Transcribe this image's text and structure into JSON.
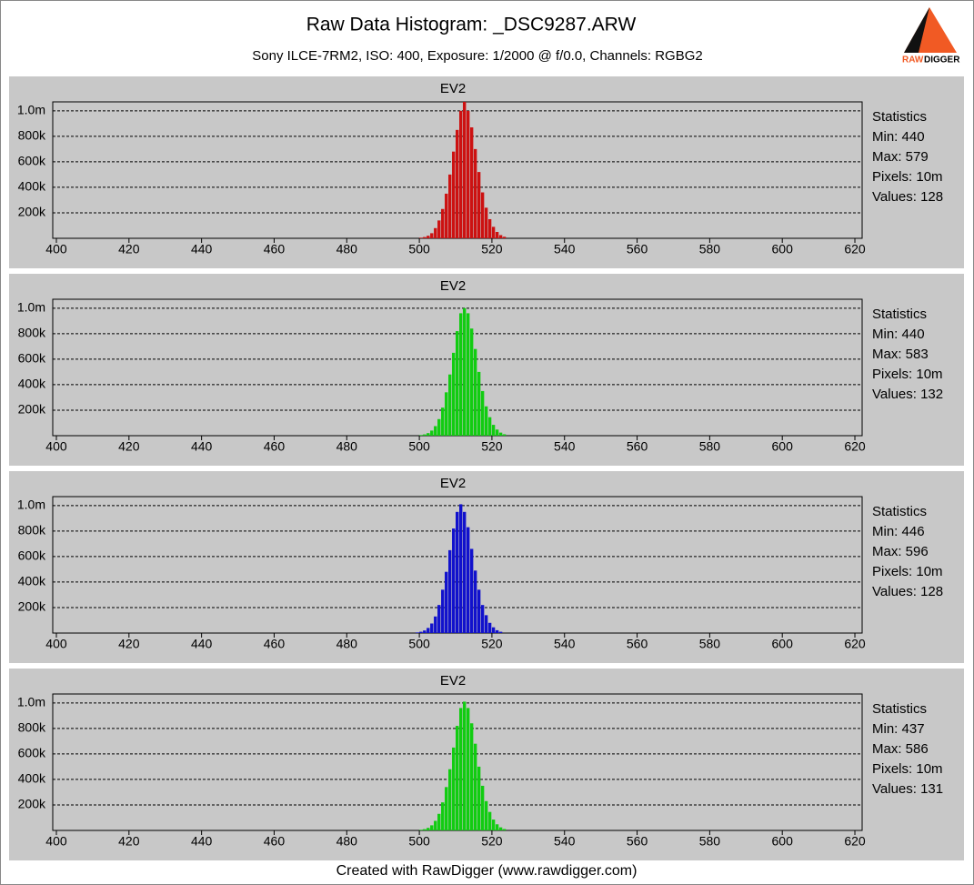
{
  "title": "Raw Data Histogram: _DSC9287.ARW",
  "subtitle": "Sony ILCE-7RM2, ISO: 400, Exposure: 1/2000 @ f/0.0, Channels: RGBG2",
  "footer": "Created with RawDigger (www.rawdigger.com)",
  "logo": {
    "raw": "RAW",
    "digger": "DIGGER"
  },
  "chart_data": [
    {
      "type": "histogram",
      "title": "EV2",
      "color": "#cc1111",
      "bins": [
        500,
        501,
        502,
        503,
        504,
        505,
        506,
        507,
        508,
        509,
        510,
        511,
        512,
        513,
        514,
        515,
        516,
        517,
        518,
        519,
        520,
        521,
        522,
        523,
        524
      ],
      "values": [
        5000,
        10000,
        20000,
        40000,
        80000,
        140000,
        230000,
        350000,
        500000,
        680000,
        850000,
        1000000,
        1070000,
        1000000,
        870000,
        700000,
        520000,
        360000,
        240000,
        150000,
        90000,
        50000,
        25000,
        12000
      ],
      "xlim": [
        399,
        622
      ],
      "xticks": [
        400,
        420,
        440,
        460,
        480,
        500,
        520,
        540,
        560,
        580,
        600,
        620
      ],
      "ylim": [
        0,
        1070000
      ],
      "yticks": [
        {
          "value": 200000,
          "label": "200k"
        },
        {
          "value": 400000,
          "label": "400k"
        },
        {
          "value": 600000,
          "label": "600k"
        },
        {
          "value": 800000,
          "label": "800k"
        },
        {
          "value": 1000000,
          "label": "1.0m"
        }
      ],
      "grid": true,
      "stats": [
        "Statistics",
        "Min: 440",
        "Max: 579",
        "Pixels: 10m",
        "Values: 128"
      ]
    },
    {
      "type": "histogram",
      "title": "EV2",
      "color": "#11cc11",
      "bins": [
        500,
        501,
        502,
        503,
        504,
        505,
        506,
        507,
        508,
        509,
        510,
        511,
        512,
        513,
        514,
        515,
        516,
        517,
        518,
        519,
        520,
        521,
        522,
        523,
        524
      ],
      "values": [
        5000,
        10000,
        20000,
        40000,
        75000,
        130000,
        220000,
        340000,
        480000,
        650000,
        820000,
        960000,
        1000000,
        960000,
        840000,
        680000,
        500000,
        350000,
        230000,
        145000,
        85000,
        48000,
        24000,
        11000
      ],
      "xlim": [
        399,
        622
      ],
      "xticks": [
        400,
        420,
        440,
        460,
        480,
        500,
        520,
        540,
        560,
        580,
        600,
        620
      ],
      "ylim": [
        0,
        1070000
      ],
      "yticks": [
        {
          "value": 200000,
          "label": "200k"
        },
        {
          "value": 400000,
          "label": "400k"
        },
        {
          "value": 600000,
          "label": "600k"
        },
        {
          "value": 800000,
          "label": "800k"
        },
        {
          "value": 1000000,
          "label": "1.0m"
        }
      ],
      "grid": true,
      "stats": [
        "Statistics",
        "Min: 440",
        "Max: 583",
        "Pixels: 10m",
        "Values: 132"
      ]
    },
    {
      "type": "histogram",
      "title": "EV2",
      "color": "#1111cc",
      "bins": [
        499,
        500,
        501,
        502,
        503,
        504,
        505,
        506,
        507,
        508,
        509,
        510,
        511,
        512,
        513,
        514,
        515,
        516,
        517,
        518,
        519,
        520,
        521,
        522,
        523
      ],
      "values": [
        5000,
        10000,
        20000,
        40000,
        75000,
        130000,
        220000,
        340000,
        480000,
        650000,
        820000,
        950000,
        1010000,
        950000,
        830000,
        660000,
        490000,
        340000,
        220000,
        140000,
        80000,
        45000,
        22000,
        10000
      ],
      "xlim": [
        399,
        622
      ],
      "xticks": [
        400,
        420,
        440,
        460,
        480,
        500,
        520,
        540,
        560,
        580,
        600,
        620
      ],
      "ylim": [
        0,
        1070000
      ],
      "yticks": [
        {
          "value": 200000,
          "label": "200k"
        },
        {
          "value": 400000,
          "label": "400k"
        },
        {
          "value": 600000,
          "label": "600k"
        },
        {
          "value": 800000,
          "label": "800k"
        },
        {
          "value": 1000000,
          "label": "1.0m"
        }
      ],
      "grid": true,
      "stats": [
        "Statistics",
        "Min: 446",
        "Max: 596",
        "Pixels: 10m",
        "Values: 128"
      ]
    },
    {
      "type": "histogram",
      "title": "EV2",
      "color": "#11cc11",
      "bins": [
        500,
        501,
        502,
        503,
        504,
        505,
        506,
        507,
        508,
        509,
        510,
        511,
        512,
        513,
        514,
        515,
        516,
        517,
        518,
        519,
        520,
        521,
        522,
        523,
        524
      ],
      "values": [
        5000,
        10000,
        20000,
        40000,
        75000,
        130000,
        220000,
        340000,
        480000,
        650000,
        820000,
        960000,
        1010000,
        960000,
        840000,
        680000,
        500000,
        350000,
        230000,
        145000,
        85000,
        48000,
        24000,
        11000
      ],
      "xlim": [
        399,
        622
      ],
      "xticks": [
        400,
        420,
        440,
        460,
        480,
        500,
        520,
        540,
        560,
        580,
        600,
        620
      ],
      "ylim": [
        0,
        1070000
      ],
      "yticks": [
        {
          "value": 200000,
          "label": "200k"
        },
        {
          "value": 400000,
          "label": "400k"
        },
        {
          "value": 600000,
          "label": "600k"
        },
        {
          "value": 800000,
          "label": "800k"
        },
        {
          "value": 1000000,
          "label": "1.0m"
        }
      ],
      "grid": true,
      "stats": [
        "Statistics",
        "Min: 437",
        "Max: 586",
        "Pixels: 10m",
        "Values: 131"
      ]
    }
  ]
}
